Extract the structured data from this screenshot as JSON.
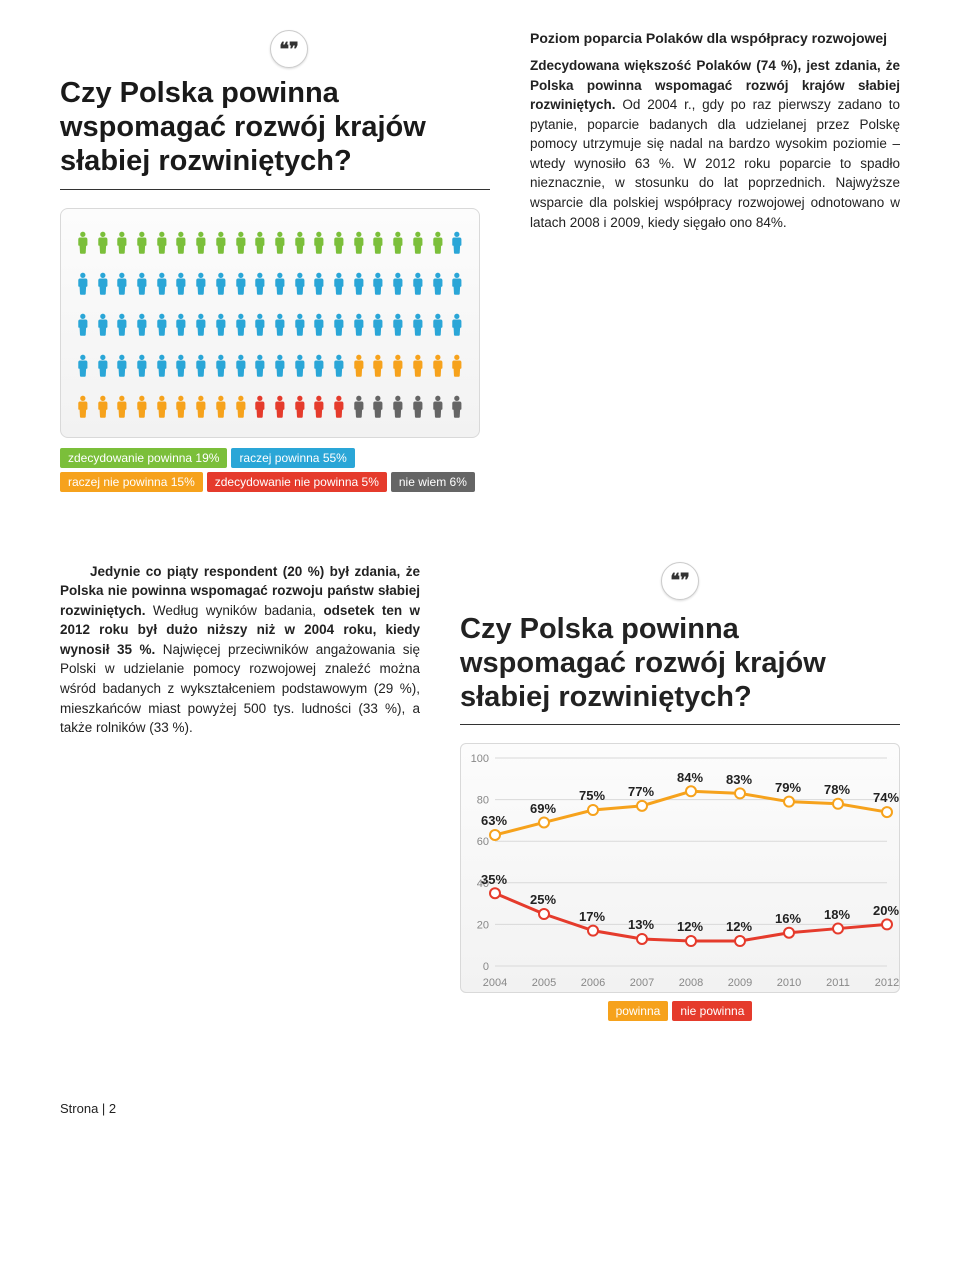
{
  "top": {
    "quote_glyph": "❝❞",
    "title": "Czy Polska powinna wspomagać rozwój krajów słabiej rozwiniętych?",
    "people": {
      "cols": 20,
      "rows": 5,
      "segments": [
        {
          "key": "zdec_pow",
          "label": "zdecydowanie powinna 19%",
          "count": 19,
          "color": "#7bbf3a"
        },
        {
          "key": "raczej_pow",
          "label": "raczej powinna 55%",
          "count": 55,
          "color": "#2aa6d7"
        },
        {
          "key": "raczej_nie",
          "label": "raczej nie powinna 15%",
          "count": 15,
          "color": "#f6a21c"
        },
        {
          "key": "zdec_nie",
          "label": "zdecydowanie nie powinna 5%",
          "count": 5,
          "color": "#e53b2c"
        },
        {
          "key": "niewiem",
          "label": "nie wiem 6%",
          "count": 6,
          "color": "#656565"
        }
      ]
    }
  },
  "right_col": {
    "heading": "Poziom poparcia Polaków dla współpracy rozwojowej",
    "para1a": "Zdecydowana większość Polaków (74 %), jest zdania, że Polska powinna wspomagać rozwój krajów słabiej rozwiniętych. ",
    "para1b": "Od 2004 r., gdy po raz pierwszy zadano to pytanie, poparcie badanych dla udzielanej przez Polskę pomocy utrzymuje się nadal na bardzo wysokim poziomie – wtedy wynosiło 63 %.",
    "para1c": " W 2012 roku poparcie to spadło nieznacznie, w stosunku do lat poprzednich. Najwyższe wsparcie dla polskiej współpracy rozwojowej odnotowano w latach 2008 i 2009, kiedy sięgało ono 84%."
  },
  "bottom_left": {
    "p1": "Jedynie co piąty respondent (20 %) był zdania, że Polska nie powinna wspomagać rozwoju państw słabiej rozwiniętych.",
    "p2a": " Według wyników badania, ",
    "p2b": "odsetek ten w 2012 roku był dużo niższy niż w 2004 roku, kiedy wynosił 35 %.",
    "p2c": " Najwięcej przeciwników angażowania się Polski w udzielanie pomocy rozwojowej znaleźć można wśród badanych z wykształceniem podstawowym (29 %), mieszkańców miast powyżej 500 tys. ludności (33 %), a także rolników (33 %)."
  },
  "chart": {
    "title": "Czy Polska powinna wspomagać rozwój krajów słabiej rozwiniętych?",
    "years": [
      "2004",
      "2005",
      "2006",
      "2007",
      "2008",
      "2009",
      "2010",
      "2011",
      "2012"
    ],
    "y_ticks": [
      0,
      20,
      40,
      60,
      80,
      100
    ],
    "ylim": [
      0,
      100
    ],
    "series": [
      {
        "key": "powinna",
        "label": "powinna",
        "color": "#f6a21c",
        "values": [
          63,
          69,
          75,
          77,
          84,
          83,
          79,
          78,
          74
        ]
      },
      {
        "key": "niepow",
        "label": "nie powinna",
        "color": "#e53b2c",
        "values": [
          35,
          25,
          17,
          13,
          12,
          12,
          16,
          18,
          20
        ]
      }
    ],
    "line_width": 3,
    "marker_radius": 5,
    "marker_fill": "#ffffff",
    "grid_color": "#d9d9d9",
    "background": "#f6f6f6"
  },
  "footer": "Strona | 2"
}
